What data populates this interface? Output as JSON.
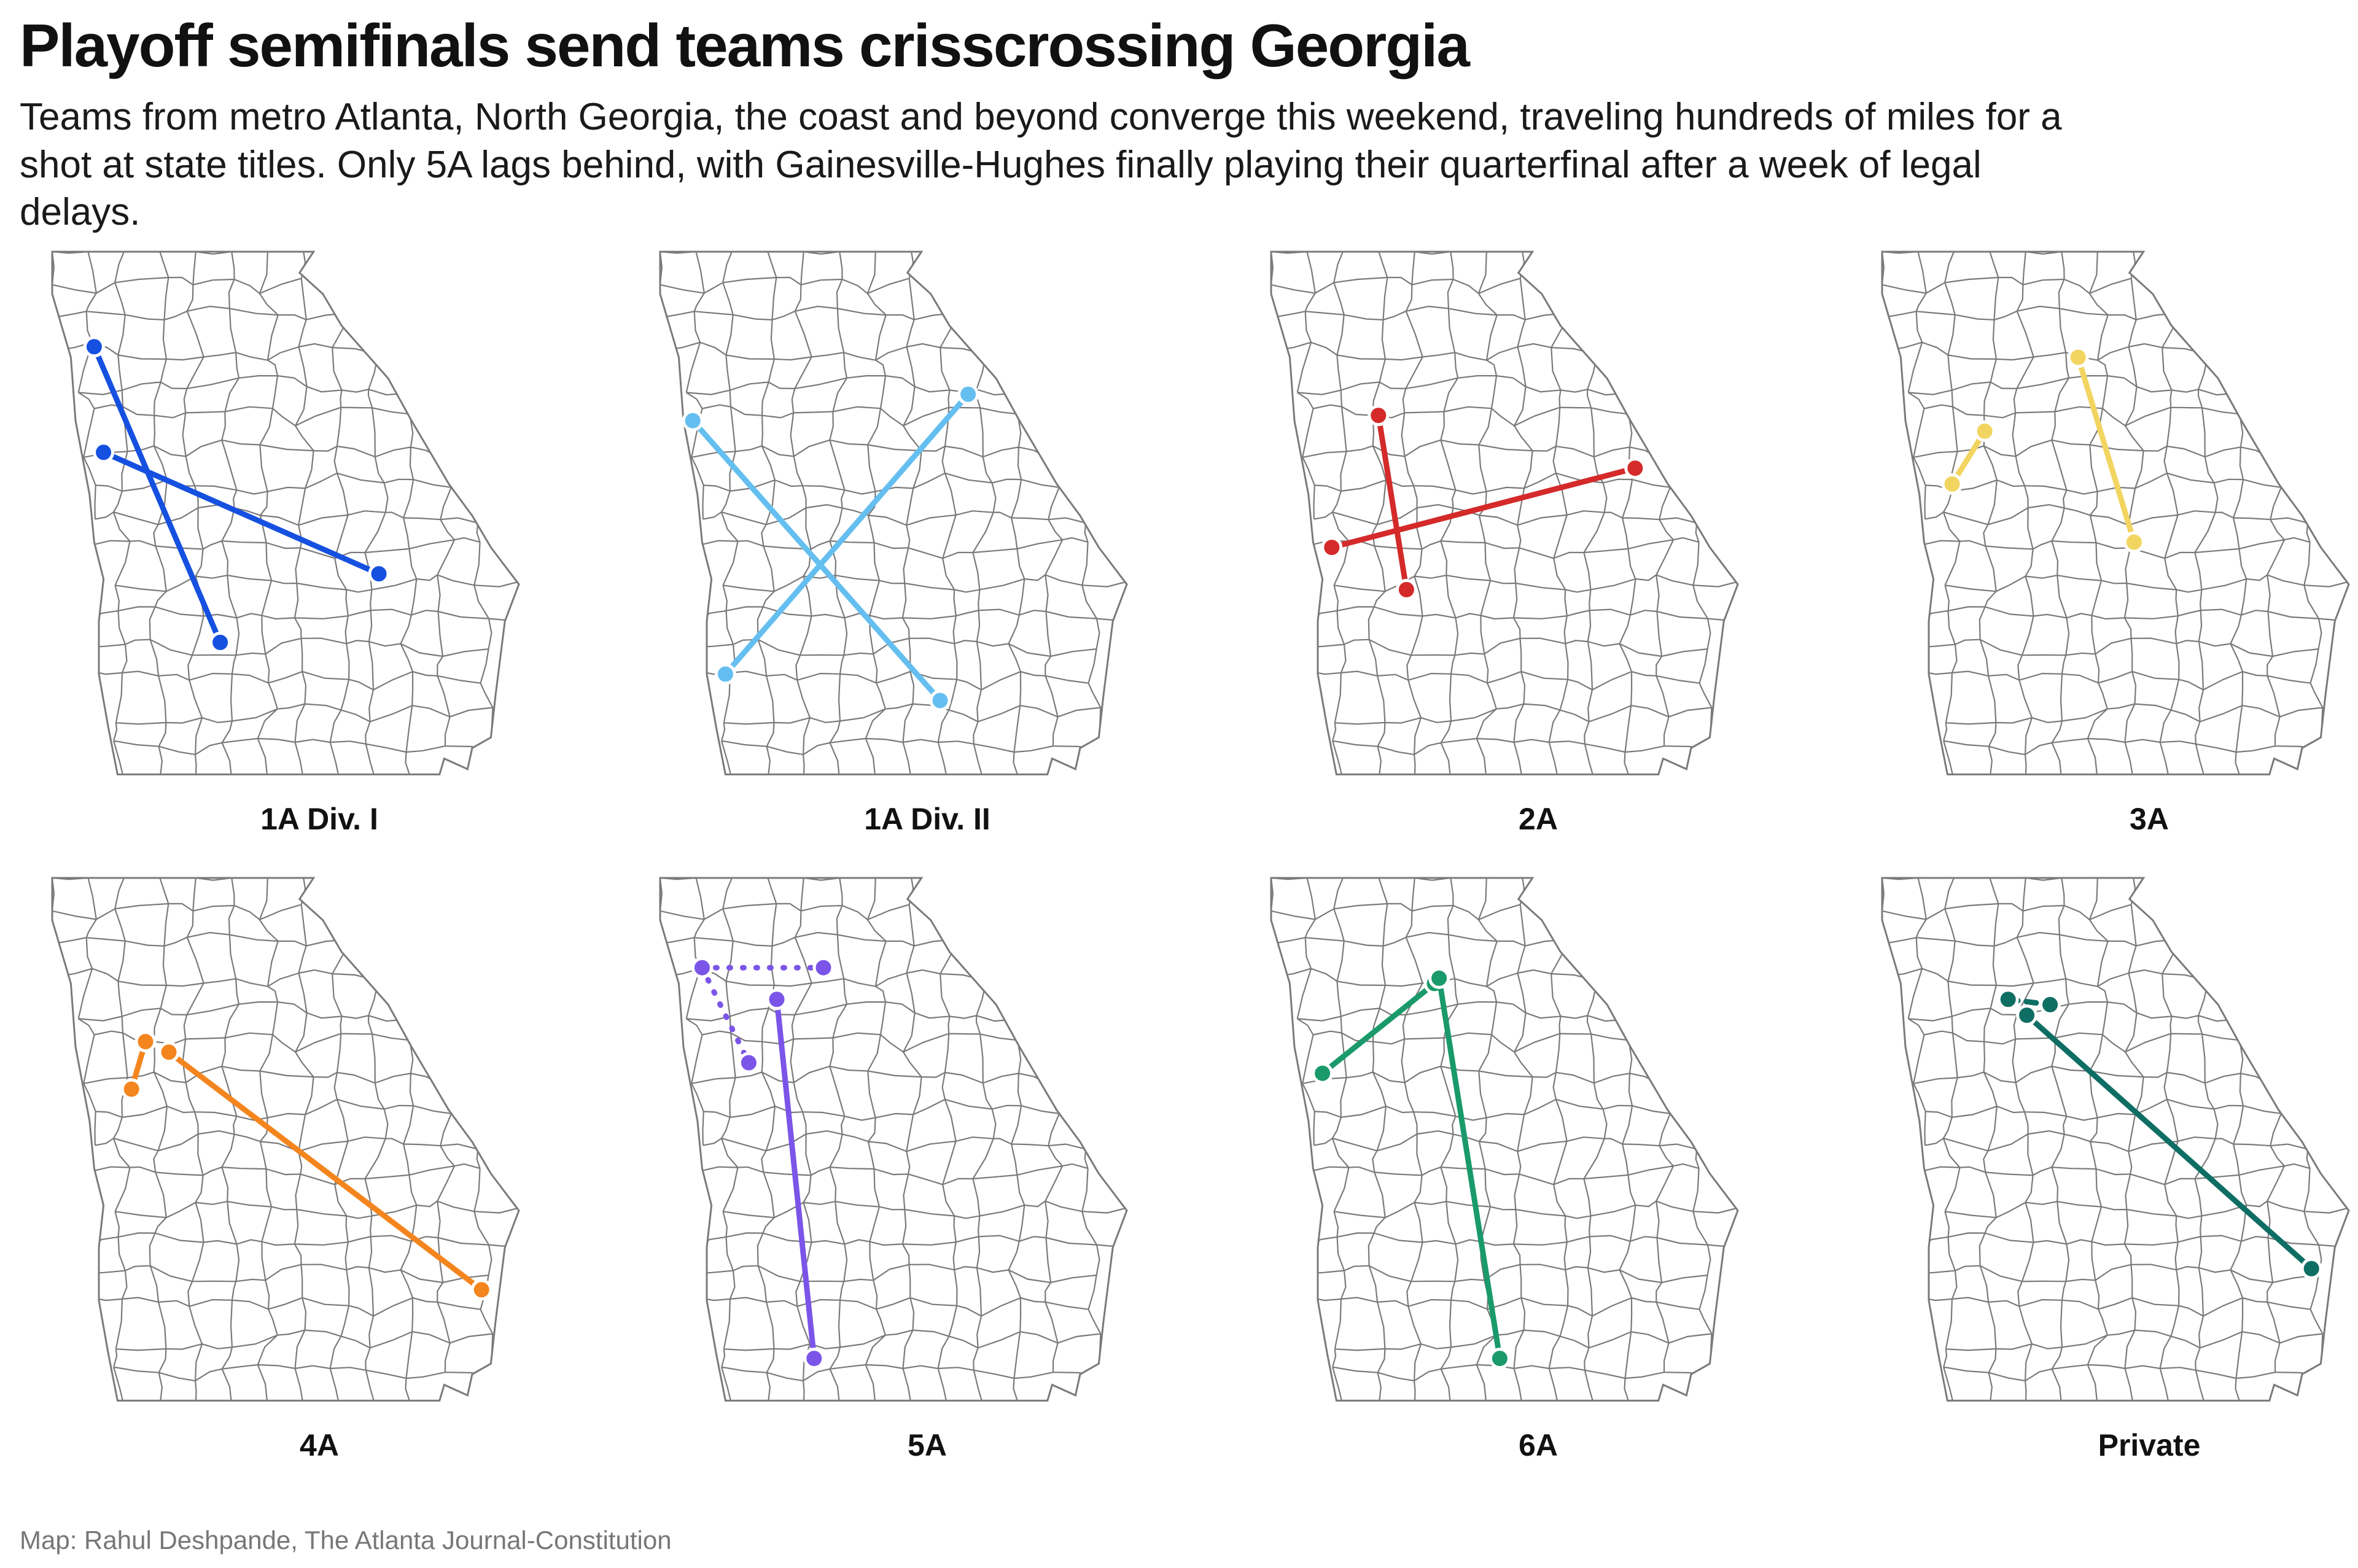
{
  "header": {
    "title": "Playoff semifinals send teams crisscrossing Georgia",
    "subtitle": "Teams from metro Atlanta, North Georgia, the coast and beyond converge this weekend, traveling hundreds of miles for a shot at state titles. Only 5A lags behind, with Gainesville-Hughes finally playing their quarterfinal after a week of legal delays."
  },
  "footer": {
    "credit": "Map: Rahul Deshpande, The Atlanta Journal-Constitution"
  },
  "base_map": {
    "state": "Georgia",
    "county_boundary_color": "#7a7a7a",
    "background": "#ffffff"
  },
  "panels": [
    {
      "label": "1A Div. I",
      "color": "#1550e0",
      "routes": [
        {
          "from": [
            0.09,
            0.18
          ],
          "to": [
            0.36,
            0.74
          ],
          "style": "solid"
        },
        {
          "from": [
            0.11,
            0.38
          ],
          "to": [
            0.7,
            0.61
          ],
          "style": "solid"
        }
      ]
    },
    {
      "label": "1A Div. II",
      "color": "#64bff0",
      "routes": [
        {
          "from": [
            0.07,
            0.32
          ],
          "to": [
            0.6,
            0.85
          ],
          "style": "solid"
        },
        {
          "from": [
            0.66,
            0.27
          ],
          "to": [
            0.14,
            0.8
          ],
          "style": "solid"
        }
      ]
    },
    {
      "label": "2A",
      "color": "#d42a2a",
      "routes": [
        {
          "from": [
            0.23,
            0.31
          ],
          "to": [
            0.29,
            0.64
          ],
          "style": "solid"
        },
        {
          "from": [
            0.13,
            0.56
          ],
          "to": [
            0.78,
            0.41
          ],
          "style": "solid"
        }
      ]
    },
    {
      "label": "3A",
      "color": "#f2d561",
      "routes": [
        {
          "from": [
            0.15,
            0.44
          ],
          "to": [
            0.22,
            0.34
          ],
          "style": "solid"
        },
        {
          "from": [
            0.42,
            0.2
          ],
          "to": [
            0.54,
            0.55
          ],
          "style": "solid"
        }
      ]
    },
    {
      "label": "4A",
      "color": "#f4851e",
      "routes": [
        {
          "from": [
            0.2,
            0.31
          ],
          "to": [
            0.17,
            0.4
          ],
          "style": "solid"
        },
        {
          "from": [
            0.25,
            0.33
          ],
          "to": [
            0.92,
            0.78
          ],
          "style": "solid"
        }
      ]
    },
    {
      "label": "5A",
      "color": "#7b55e8",
      "routes": [
        {
          "from": [
            0.09,
            0.17
          ],
          "to": [
            0.35,
            0.17
          ],
          "style": "dotted"
        },
        {
          "from": [
            0.09,
            0.17
          ],
          "to": [
            0.19,
            0.35
          ],
          "style": "dotted"
        },
        {
          "from": [
            0.25,
            0.23
          ],
          "to": [
            0.33,
            0.91
          ],
          "style": "solid"
        }
      ]
    },
    {
      "label": "6A",
      "color": "#1a9a6b",
      "routes": [
        {
          "from": [
            0.35,
            0.2
          ],
          "to": [
            0.11,
            0.37
          ],
          "style": "solid"
        },
        {
          "from": [
            0.36,
            0.19
          ],
          "to": [
            0.49,
            0.91
          ],
          "style": "solid"
        }
      ]
    },
    {
      "label": "Private",
      "color": "#0e6e64",
      "routes": [
        {
          "from": [
            0.27,
            0.23
          ],
          "to": [
            0.36,
            0.24
          ],
          "style": "dashed"
        },
        {
          "from": [
            0.31,
            0.26
          ],
          "to": [
            0.92,
            0.74
          ],
          "style": "solid"
        }
      ]
    }
  ]
}
